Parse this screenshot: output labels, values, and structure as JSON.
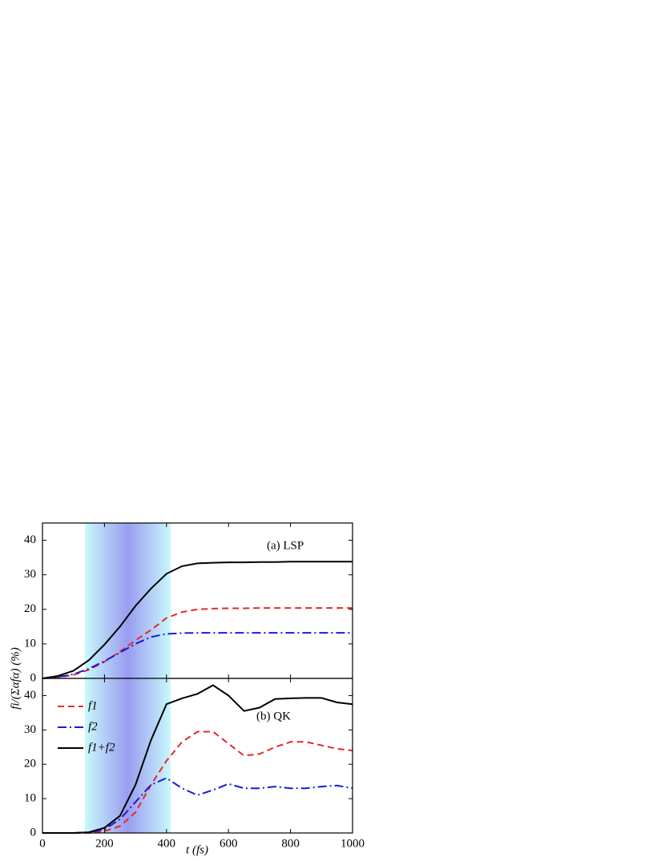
{
  "chart_data": [
    {
      "type": "line",
      "annotation": "(a) LSP",
      "x": [
        0,
        50,
        100,
        150,
        200,
        250,
        300,
        350,
        400,
        450,
        500,
        550,
        600,
        650,
        700,
        750,
        800,
        850,
        900,
        950,
        1000
      ],
      "xlim": [
        0,
        1000
      ],
      "ylim": [
        0,
        45
      ],
      "yticks": [
        0,
        10,
        20,
        30,
        40
      ],
      "highlight": [
        137,
        413
      ],
      "series": [
        {
          "name": "f1",
          "color": "#e8262a",
          "dash": "dashed",
          "values": [
            0,
            0.3,
            1,
            2.5,
            4.8,
            7.8,
            11,
            14,
            17.5,
            19.2,
            20,
            20.2,
            20.3,
            20.3,
            20.4,
            20.4,
            20.4,
            20.4,
            20.4,
            20.4,
            20.4
          ]
        },
        {
          "name": "f2",
          "color": "#1a1ad6",
          "dash": "dashdot",
          "values": [
            0,
            0.4,
            1.2,
            2.8,
            5,
            7.5,
            10,
            12,
            12.9,
            13.1,
            13.2,
            13.2,
            13.2,
            13.2,
            13.2,
            13.2,
            13.2,
            13.2,
            13.2,
            13.2,
            13.2
          ]
        },
        {
          "name": "f1+f2",
          "color": "#000000",
          "dash": "solid",
          "values": [
            0,
            0.7,
            2.2,
            5.3,
            9.8,
            15,
            21,
            26,
            30.3,
            32.5,
            33.3,
            33.5,
            33.6,
            33.6,
            33.7,
            33.7,
            33.8,
            33.8,
            33.8,
            33.8,
            33.8
          ]
        }
      ]
    },
    {
      "type": "line",
      "annotation": "(b) QK",
      "xlabel": "t (fs)",
      "ylabel": "fi/(Σαfα) (%)",
      "x": [
        0,
        50,
        100,
        150,
        200,
        250,
        300,
        350,
        400,
        450,
        500,
        550,
        600,
        650,
        700,
        750,
        800,
        850,
        900,
        950,
        1000
      ],
      "xlim": [
        0,
        1000
      ],
      "xticks": [
        0,
        200,
        400,
        600,
        800,
        1000
      ],
      "ylim": [
        0,
        45
      ],
      "yticks": [
        0,
        10,
        20,
        30,
        40
      ],
      "highlight": [
        137,
        413
      ],
      "legend": "upper left",
      "series": [
        {
          "name": "f1",
          "color": "#e8262a",
          "dash": "dashed",
          "values": [
            0,
            0,
            0,
            0,
            0.5,
            2,
            6,
            14,
            21,
            26.5,
            29.5,
            29.5,
            26,
            22.5,
            23,
            25,
            26.5,
            26.5,
            25.5,
            24.5,
            24
          ]
        },
        {
          "name": "f2",
          "color": "#1a1ad6",
          "dash": "dashdot",
          "values": [
            0,
            0,
            0,
            0.2,
            1,
            4,
            9,
            14,
            16,
            13,
            11,
            12.5,
            14.3,
            13,
            13,
            13.5,
            13,
            13,
            13.5,
            13.8,
            13
          ]
        },
        {
          "name": "f1+f2",
          "color": "#000000",
          "dash": "solid",
          "values": [
            0,
            0,
            0,
            0.2,
            1.5,
            5,
            14,
            27,
            37.5,
            39.2,
            40.5,
            43,
            40,
            35.5,
            36.5,
            39,
            39.2,
            39.3,
            39.3,
            38,
            37.5
          ]
        }
      ]
    }
  ]
}
